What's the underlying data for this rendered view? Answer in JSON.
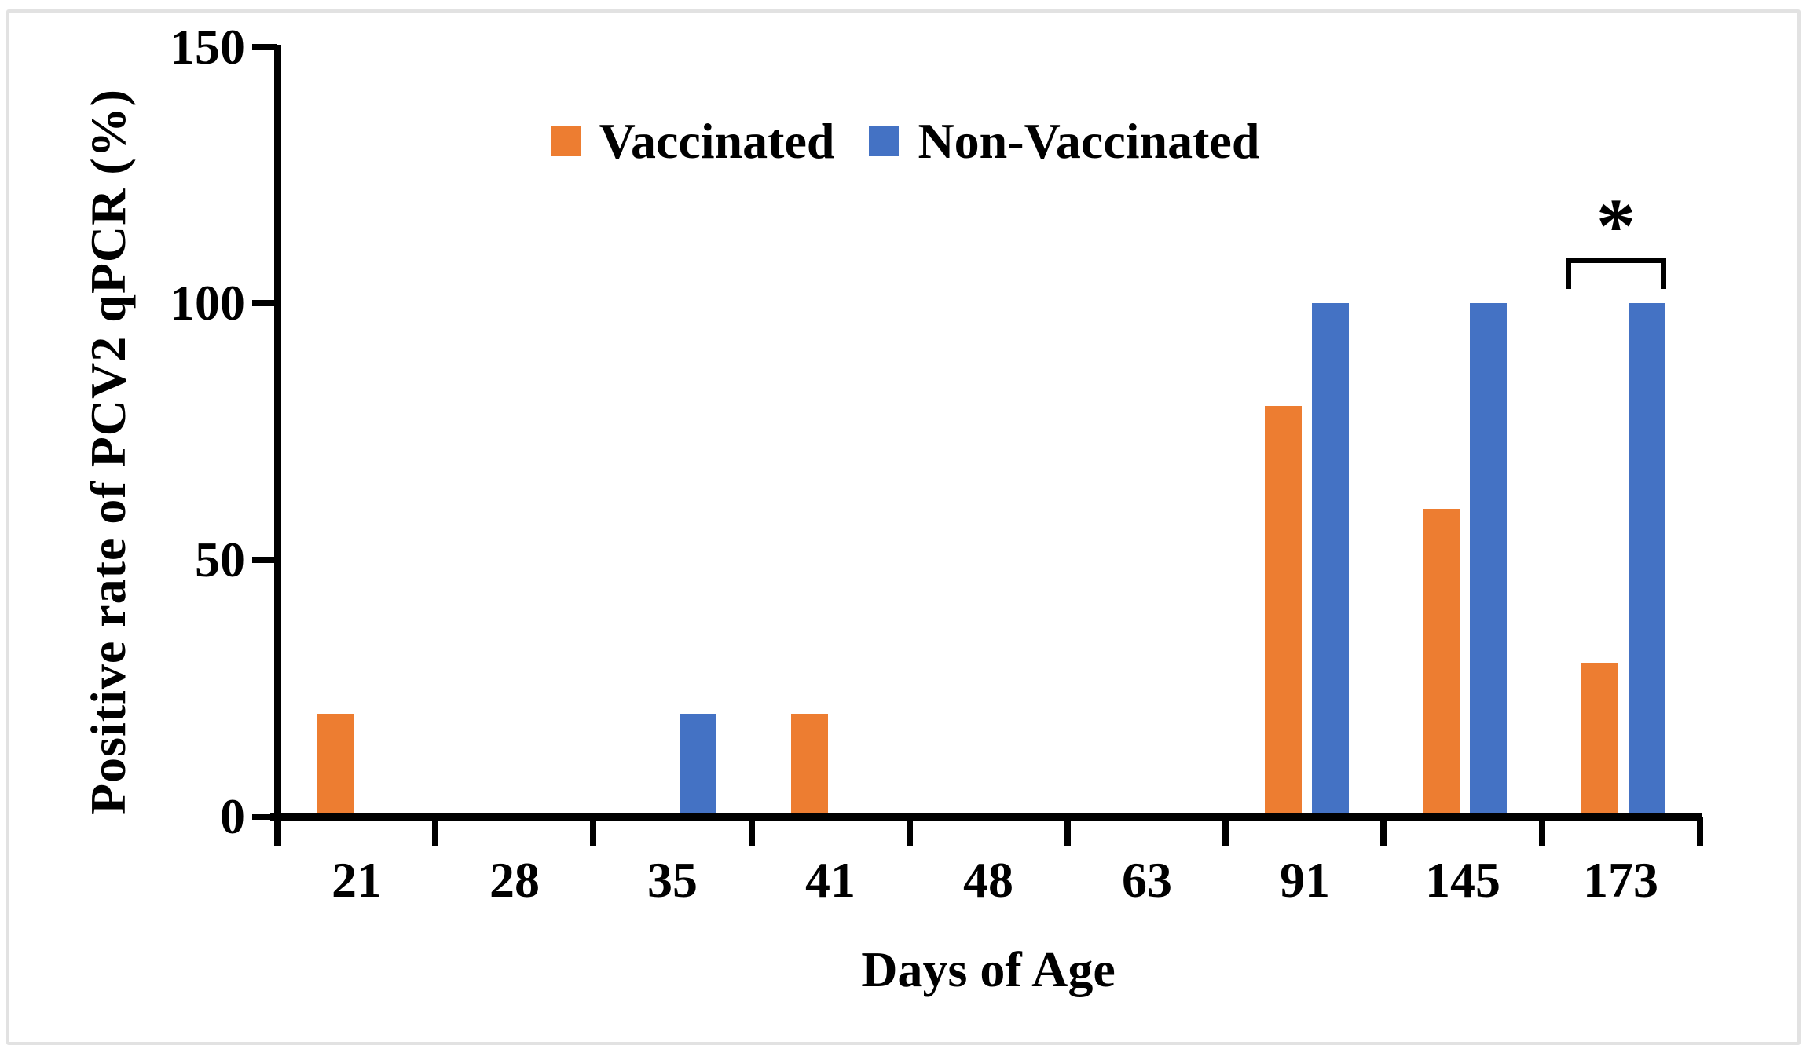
{
  "figure": {
    "background": "#ffffff",
    "border_color": "#e2e2e2",
    "axis_color": "#000000",
    "text_color": "#000000"
  },
  "chart_data": {
    "type": "bar",
    "title": "",
    "categories": [
      "21",
      "28",
      "35",
      "41",
      "48",
      "63",
      "91",
      "145",
      "173"
    ],
    "series": [
      {
        "name": "Vaccinated",
        "color": "#ED7D31",
        "values": [
          20,
          0,
          0,
          20,
          0,
          0,
          80,
          60,
          30
        ]
      },
      {
        "name": "Non-Vaccinated",
        "color": "#4472C4",
        "values": [
          0,
          0,
          20,
          0,
          0,
          0,
          100,
          100,
          100
        ]
      }
    ],
    "xlabel": "Days of Age",
    "ylabel": "Positive rate of PCV2 qPCR (%)",
    "ylim": [
      0,
      150
    ],
    "yticks": [
      0,
      50,
      100,
      150
    ],
    "grid": false,
    "legend_position": "top-center",
    "annotations": [
      {
        "type": "significance-bracket",
        "text": "*",
        "category": "173",
        "between": [
          "Vaccinated",
          "Non-Vaccinated"
        ]
      }
    ]
  }
}
